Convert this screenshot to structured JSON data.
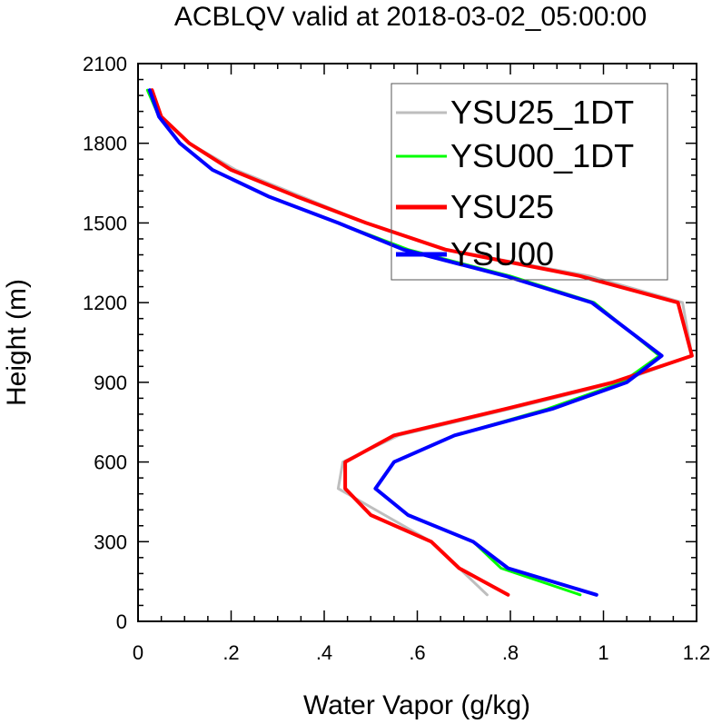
{
  "chart_data": {
    "type": "line",
    "title": "ACBLQV valid at 2018-03-02_05:00:00",
    "xlabel": "Water Vapor (g/kg)",
    "ylabel": "Height (m)",
    "xlim": [
      0,
      1.2
    ],
    "ylim": [
      0,
      2100
    ],
    "x_ticks": [
      0,
      0.2,
      0.4,
      0.6,
      0.8,
      1.0,
      1.2
    ],
    "x_tick_labels": [
      "0",
      ".2",
      ".4",
      ".6",
      ".8",
      "1",
      "1.2"
    ],
    "y_ticks": [
      0,
      300,
      600,
      900,
      1200,
      1500,
      1800,
      2100
    ],
    "y_tick_labels": [
      "0",
      "300",
      "600",
      "900",
      "1200",
      "1500",
      "1800",
      "2100"
    ],
    "grid": false,
    "legend_position": "top-right",
    "series": [
      {
        "name": "YSU25_1DT",
        "color": "#bebebe",
        "stroke": "thin",
        "points": [
          [
            0.75,
            100
          ],
          [
            0.69,
            200
          ],
          [
            0.63,
            300
          ],
          [
            0.53,
            400
          ],
          [
            0.43,
            500
          ],
          [
            0.44,
            600
          ],
          [
            0.56,
            700
          ],
          [
            0.8,
            800
          ],
          [
            1.03,
            900
          ],
          [
            1.19,
            1000
          ],
          [
            1.17,
            1200
          ],
          [
            0.97,
            1300
          ],
          [
            0.66,
            1400
          ],
          [
            0.49,
            1500
          ],
          [
            0.35,
            1600
          ],
          [
            0.21,
            1700
          ],
          [
            0.11,
            1800
          ],
          [
            0.05,
            1900
          ],
          [
            0.025,
            2000
          ]
        ]
      },
      {
        "name": "YSU00_1DT",
        "color": "#00ff00",
        "stroke": "thin",
        "points": [
          [
            0.95,
            100
          ],
          [
            0.78,
            200
          ],
          [
            0.72,
            300
          ],
          [
            0.58,
            400
          ],
          [
            0.51,
            500
          ],
          [
            0.55,
            600
          ],
          [
            0.68,
            700
          ],
          [
            0.88,
            800
          ],
          [
            1.04,
            900
          ],
          [
            1.12,
            1000
          ],
          [
            0.98,
            1200
          ],
          [
            0.8,
            1300
          ],
          [
            0.58,
            1400
          ],
          [
            0.43,
            1500
          ],
          [
            0.28,
            1600
          ],
          [
            0.16,
            1700
          ],
          [
            0.09,
            1800
          ],
          [
            0.045,
            1900
          ],
          [
            0.02,
            2000
          ]
        ]
      },
      {
        "name": "YSU25",
        "color": "#ff0000",
        "stroke": "thick",
        "points": [
          [
            0.795,
            100
          ],
          [
            0.69,
            200
          ],
          [
            0.63,
            300
          ],
          [
            0.5,
            400
          ],
          [
            0.445,
            500
          ],
          [
            0.445,
            600
          ],
          [
            0.55,
            700
          ],
          [
            0.79,
            800
          ],
          [
            1.02,
            900
          ],
          [
            1.19,
            1000
          ],
          [
            1.16,
            1200
          ],
          [
            0.95,
            1300
          ],
          [
            0.66,
            1400
          ],
          [
            0.49,
            1500
          ],
          [
            0.34,
            1600
          ],
          [
            0.2,
            1700
          ],
          [
            0.11,
            1800
          ],
          [
            0.05,
            1900
          ],
          [
            0.03,
            2000
          ]
        ]
      },
      {
        "name": "YSU00",
        "color": "#0000ff",
        "stroke": "thick",
        "points": [
          [
            0.985,
            100
          ],
          [
            0.795,
            200
          ],
          [
            0.72,
            300
          ],
          [
            0.58,
            400
          ],
          [
            0.51,
            500
          ],
          [
            0.55,
            600
          ],
          [
            0.68,
            700
          ],
          [
            0.89,
            800
          ],
          [
            1.05,
            900
          ],
          [
            1.125,
            1000
          ],
          [
            0.975,
            1200
          ],
          [
            0.79,
            1300
          ],
          [
            0.57,
            1400
          ],
          [
            0.43,
            1500
          ],
          [
            0.28,
            1600
          ],
          [
            0.16,
            1700
          ],
          [
            0.09,
            1800
          ],
          [
            0.045,
            1900
          ],
          [
            0.025,
            2000
          ]
        ]
      }
    ]
  }
}
